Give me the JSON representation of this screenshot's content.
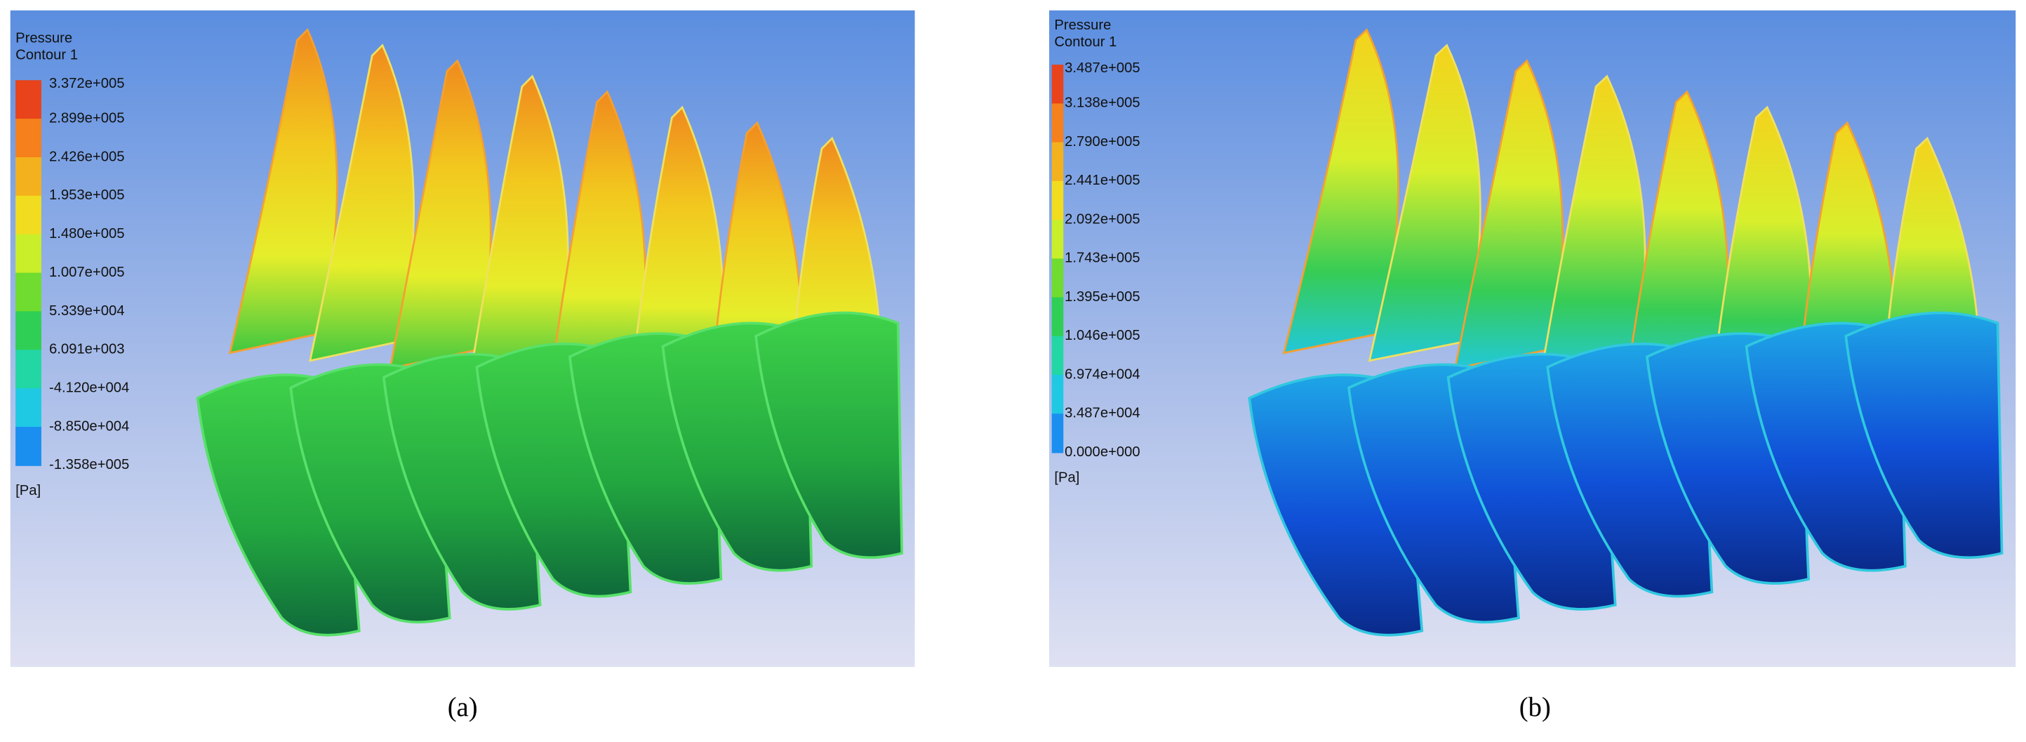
{
  "panels": [
    {
      "legend_title": "Pressure",
      "legend_subtitle": "Contour 1",
      "legend_values": [
        "3.372e+005",
        "2.899e+005",
        "2.426e+005",
        "1.953e+005",
        "1.480e+005",
        "1.007e+005",
        "5.339e+004",
        "6.091e+003",
        "-4.120e+004",
        "-8.850e+004",
        "-1.358e+005"
      ],
      "unit": "[Pa]",
      "caption": "(a)"
    },
    {
      "legend_title": "Pressure",
      "legend_subtitle": "Contour 1",
      "legend_values": [
        "3.487e+005",
        "3.138e+005",
        "2.790e+005",
        "2.441e+005",
        "2.092e+005",
        "1.743e+005",
        "1.395e+005",
        "1.046e+005",
        "6.974e+004",
        "3.487e+004",
        "0.000e+000"
      ],
      "unit": "[Pa]",
      "caption": "(b)"
    }
  ]
}
